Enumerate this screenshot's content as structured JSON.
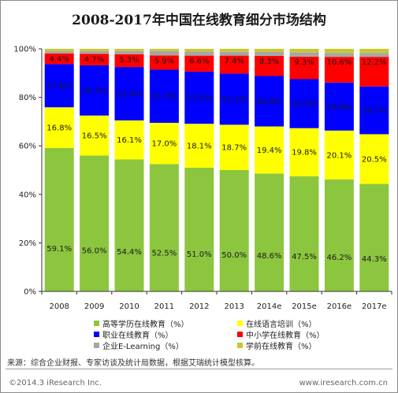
{
  "chart_data": {
    "type": "bar",
    "stacked": true,
    "title": "2008-2017年中国在线教育细分市场结构",
    "categories": [
      "2008",
      "2009",
      "2010",
      "2011",
      "2012",
      "2013",
      "2014e",
      "2015e",
      "2016e",
      "2017e"
    ],
    "ylim": [
      0,
      100
    ],
    "yticks": [
      "0%",
      "20%",
      "40%",
      "60%",
      "80%",
      "100%"
    ],
    "grid": false,
    "legend_position": "bottom",
    "series": [
      {
        "name": "高等学历在线教育（%）",
        "color": "#8cc63f",
        "values": [
          59.1,
          56.0,
          54.4,
          52.5,
          51.0,
          50.0,
          48.6,
          47.5,
          46.2,
          44.3
        ],
        "labels": [
          "59.1%",
          "56.0%",
          "54.4%",
          "52.5%",
          "51.0%",
          "50.0%",
          "48.6%",
          "47.5%",
          "46.2%",
          "44.3%"
        ]
      },
      {
        "name": "在线语言培训（%）",
        "color": "#ffff00",
        "values": [
          16.8,
          16.5,
          16.1,
          17.0,
          18.1,
          18.7,
          19.4,
          19.8,
          20.1,
          20.5
        ],
        "labels": [
          "16.8%",
          "16.5%",
          "16.1%",
          "17.0%",
          "18.1%",
          "18.7%",
          "19.4%",
          "19.8%",
          "20.1%",
          "20.5%"
        ]
      },
      {
        "name": "职业在线教育（%）",
        "color": "#0000ff",
        "values": [
          17.8,
          20.7,
          22.0,
          21.9,
          21.5,
          21.1,
          20.8,
          20.2,
          19.8,
          19.7
        ],
        "labels": [
          "17.8%",
          "20.7%",
          "22.0%",
          "21.9%",
          "21.5%",
          "21.1%",
          "20.8%",
          "20.2%",
          "19.8%",
          "19.7%"
        ]
      },
      {
        "name": "中小学在线教育（%）",
        "color": "#ff0000",
        "values": [
          4.4,
          4.7,
          5.3,
          5.9,
          6.6,
          7.4,
          8.3,
          9.3,
          10.6,
          12.2
        ],
        "labels": [
          "4.4%",
          "4.7%",
          "5.3%",
          "5.9%",
          "6.6%",
          "7.4%",
          "8.3%",
          "9.3%",
          "10.6%",
          "12.2%"
        ]
      },
      {
        "name": "企业E-Learning（%）",
        "color": "#a6a6a6",
        "values": [
          1.0,
          1.2,
          1.3,
          1.8,
          1.7,
          1.6,
          1.6,
          1.7,
          1.6,
          1.6
        ],
        "labels": []
      },
      {
        "name": "学前在线教育（%）",
        "color": "#c8c832",
        "values": [
          0.9,
          0.9,
          0.9,
          0.9,
          1.1,
          1.2,
          1.3,
          1.5,
          1.7,
          1.7
        ],
        "labels": []
      }
    ]
  },
  "footer": {
    "source": "来源：综合企业财报、专家访谈及统计局数据，根据艾瑞统计模型核算。",
    "copyright": "©2014.3 iResearch Inc.",
    "website": "www.iresearch.com.cn"
  }
}
